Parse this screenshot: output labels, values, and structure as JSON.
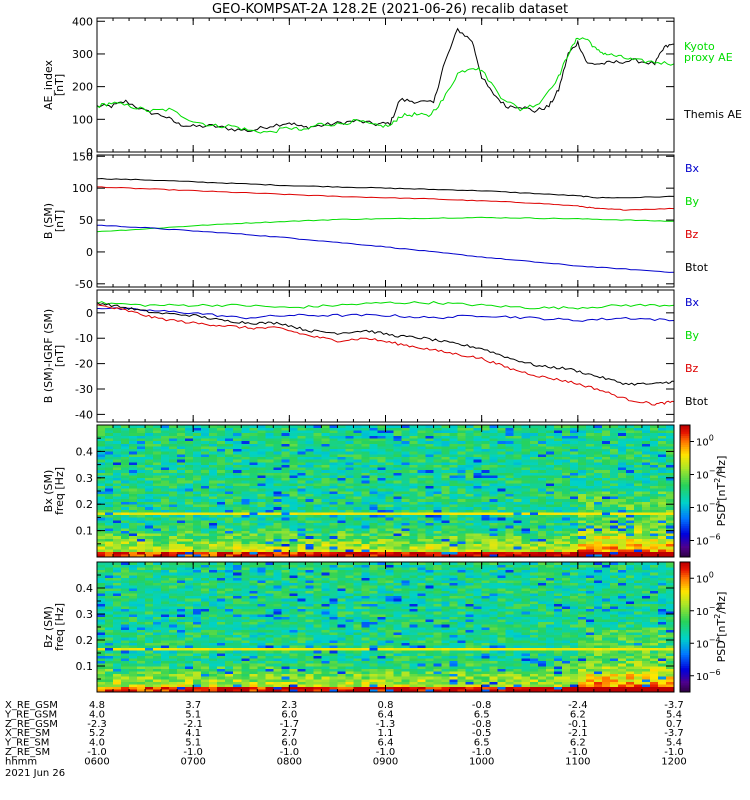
{
  "title": "GEO-KOMPSAT-2A 128.2E (2021-06-26) recalib dataset",
  "colors": {
    "black": "#000000",
    "green": "#00dd00",
    "red": "#dd0000",
    "blue": "#0000cc"
  },
  "chart_data": [
    {
      "type": "line",
      "ylabel": [
        "AE_index",
        "[nT]"
      ],
      "xlim": [
        6.0,
        12.0
      ],
      "ylim": [
        0,
        410
      ],
      "yticks": [
        "0",
        "100",
        "200",
        "300",
        "400"
      ],
      "legend": [
        {
          "name": "Kyoto proxy AE",
          "lines": [
            "Kyoto",
            "proxy AE"
          ],
          "color": "#00dd00"
        },
        {
          "name": "Themis AE",
          "lines": [
            "Themis AE"
          ],
          "color": "#000000"
        }
      ],
      "series": [
        {
          "name": "Themis AE",
          "color": "#000000",
          "x": [
            6.0,
            6.15,
            6.3,
            6.5,
            6.7,
            6.85,
            7.0,
            7.2,
            7.4,
            7.6,
            7.8,
            8.0,
            8.15,
            8.3,
            8.5,
            8.7,
            8.9,
            9.05,
            9.15,
            9.3,
            9.5,
            9.6,
            9.75,
            9.9,
            10.0,
            10.1,
            10.25,
            10.4,
            10.55,
            10.7,
            10.8,
            10.9,
            11.0,
            11.1,
            11.25,
            11.4,
            11.6,
            11.8,
            11.9,
            12.0
          ],
          "y": [
            140,
            140,
            155,
            125,
            110,
            85,
            78,
            80,
            70,
            65,
            80,
            90,
            75,
            80,
            88,
            95,
            85,
            88,
            160,
            155,
            150,
            260,
            375,
            340,
            230,
            185,
            140,
            140,
            125,
            140,
            190,
            300,
            335,
            270,
            270,
            275,
            280,
            270,
            320,
            330
          ]
        },
        {
          "name": "Kyoto proxy AE",
          "color": "#00dd00",
          "x": [
            6.0,
            6.15,
            6.35,
            6.55,
            6.75,
            7.0,
            7.2,
            7.4,
            7.6,
            7.8,
            8.0,
            8.15,
            8.3,
            8.5,
            8.7,
            8.9,
            9.05,
            9.15,
            9.3,
            9.45,
            9.6,
            9.75,
            9.9,
            10.0,
            10.2,
            10.4,
            10.6,
            10.8,
            10.9,
            11.0,
            11.1,
            11.2,
            11.3,
            11.45,
            11.6,
            11.8,
            12.0
          ],
          "y": [
            140,
            150,
            140,
            125,
            130,
            95,
            80,
            80,
            65,
            60,
            75,
            65,
            85,
            85,
            95,
            80,
            80,
            110,
            115,
            110,
            160,
            240,
            260,
            250,
            170,
            130,
            150,
            230,
            300,
            350,
            345,
            310,
            300,
            290,
            280,
            275,
            270
          ]
        }
      ]
    },
    {
      "type": "line",
      "ylabel": [
        "B (SM)",
        "[nT]"
      ],
      "xlim": [
        6.0,
        12.0
      ],
      "ylim": [
        -55,
        152
      ],
      "yticks": [
        "-50",
        "0",
        "50",
        "100",
        "150"
      ],
      "legend": [
        {
          "name": "Bx",
          "lines": [
            "Bx"
          ],
          "color": "#0000cc"
        },
        {
          "name": "By",
          "lines": [
            "By"
          ],
          "color": "#00dd00"
        },
        {
          "name": "Bz",
          "lines": [
            "Bz"
          ],
          "color": "#dd0000"
        },
        {
          "name": "Btot",
          "lines": [
            "Btot"
          ],
          "color": "#000000"
        }
      ],
      "series": [
        {
          "name": "Btot",
          "color": "#000000",
          "x": [
            6.0,
            6.5,
            7.0,
            7.5,
            8.0,
            8.5,
            9.0,
            9.5,
            10.0,
            10.5,
            11.0,
            11.2,
            11.5,
            12.0
          ],
          "y": [
            115,
            113,
            110,
            107,
            104,
            102,
            100,
            98,
            96,
            92,
            88,
            85,
            85,
            87
          ]
        },
        {
          "name": "Bz",
          "color": "#dd0000",
          "x": [
            6.0,
            6.5,
            7.0,
            7.5,
            8.0,
            8.5,
            9.0,
            9.5,
            10.0,
            10.5,
            11.0,
            11.2,
            11.5,
            12.0
          ],
          "y": [
            102,
            99,
            96,
            93,
            90,
            87,
            85,
            83,
            80,
            77,
            72,
            68,
            66,
            68
          ]
        },
        {
          "name": "By",
          "color": "#00dd00",
          "x": [
            6.0,
            6.5,
            7.0,
            7.5,
            8.0,
            8.5,
            9.0,
            9.5,
            10.0,
            10.5,
            11.0,
            11.5,
            12.0
          ],
          "y": [
            32,
            36,
            41,
            45,
            48,
            51,
            52,
            53,
            54,
            53,
            52,
            50,
            48
          ]
        },
        {
          "name": "Bx",
          "color": "#0000cc",
          "x": [
            6.0,
            6.5,
            7.0,
            7.5,
            8.0,
            8.5,
            9.0,
            9.5,
            10.0,
            10.5,
            11.0,
            11.5,
            12.0
          ],
          "y": [
            42,
            38,
            33,
            28,
            22,
            15,
            8,
            0,
            -8,
            -15,
            -22,
            -27,
            -32
          ]
        }
      ]
    },
    {
      "type": "line",
      "ylabel": [
        "B (SM)-IGRF (SM)",
        "[nT]"
      ],
      "xlim": [
        6.0,
        12.0
      ],
      "ylim": [
        -43,
        9
      ],
      "yticks": [
        "-40",
        "-30",
        "-20",
        "-10",
        "0"
      ],
      "ytick_values": [
        -40,
        -30,
        -20,
        -10,
        0
      ],
      "legend": [
        {
          "name": "Bx",
          "lines": [
            "Bx"
          ],
          "color": "#0000cc"
        },
        {
          "name": "By",
          "lines": [
            "By"
          ],
          "color": "#00dd00"
        },
        {
          "name": "Bz",
          "lines": [
            "Bz"
          ],
          "color": "#dd0000"
        },
        {
          "name": "Btot",
          "lines": [
            "Btot"
          ],
          "color": "#000000"
        }
      ],
      "series": [
        {
          "name": "By",
          "color": "#00dd00",
          "x": [
            6.0,
            6.5,
            7.0,
            7.5,
            8.0,
            8.5,
            9.0,
            9.5,
            10.0,
            10.5,
            11.0,
            11.5,
            12.0
          ],
          "y": [
            4,
            3,
            3,
            3,
            2,
            3,
            4,
            4,
            3,
            2,
            2,
            3,
            3
          ]
        },
        {
          "name": "Bx",
          "color": "#0000cc",
          "x": [
            6.0,
            6.5,
            7.0,
            7.5,
            8.0,
            8.5,
            9.0,
            9.5,
            10.0,
            10.5,
            11.0,
            11.5,
            12.0
          ],
          "y": [
            2,
            1,
            0,
            -2,
            -1,
            -1,
            -1,
            -2,
            -1,
            -2,
            -3,
            -2,
            -3
          ]
        },
        {
          "name": "Btot",
          "color": "#000000",
          "x": [
            6.0,
            6.3,
            6.6,
            7.0,
            7.3,
            7.6,
            7.9,
            8.2,
            8.5,
            8.8,
            9.1,
            9.4,
            9.7,
            10.0,
            10.3,
            10.6,
            10.9,
            11.2,
            11.5,
            11.8,
            12.0
          ],
          "y": [
            4,
            2,
            0,
            -1,
            -3,
            -4,
            -4,
            -7,
            -8,
            -7,
            -9,
            -10,
            -12,
            -14,
            -18,
            -21,
            -22,
            -25,
            -28,
            -28,
            -27
          ]
        },
        {
          "name": "Bz",
          "color": "#dd0000",
          "x": [
            6.0,
            6.3,
            6.6,
            7.0,
            7.3,
            7.6,
            7.9,
            8.2,
            8.5,
            8.8,
            9.1,
            9.4,
            9.7,
            10.0,
            10.3,
            10.6,
            10.9,
            11.2,
            11.5,
            11.8,
            12.0
          ],
          "y": [
            3,
            1,
            -2,
            -4,
            -5,
            -6,
            -6,
            -9,
            -11,
            -10,
            -12,
            -14,
            -16,
            -18,
            -22,
            -25,
            -27,
            -30,
            -34,
            -36,
            -35
          ]
        }
      ]
    },
    {
      "type": "heatmap",
      "ylabel": [
        "Bx (SM)",
        "freq [Hz]"
      ],
      "ylim": [
        0.0,
        0.5
      ],
      "yticks": [
        "0.1",
        "0.2",
        "0.3",
        "0.4"
      ],
      "ytick_values": [
        0.1,
        0.2,
        0.3,
        0.4
      ],
      "colorbar": {
        "label": "PSD [nT²/Hz]",
        "label_base": "PSD [nT",
        "label_sup": "2",
        "label_tail": "/Hz]",
        "ticks": [
          {
            "base": "10",
            "exp": "0"
          },
          {
            "base": "10",
            "exp": "−2"
          },
          {
            "base": "10",
            "exp": "−4"
          },
          {
            "base": "10",
            "exp": "−6"
          }
        ],
        "tick_exponents": [
          0,
          -2,
          -4,
          -6
        ],
        "range_exponents": [
          -7,
          1
        ]
      },
      "features": {
        "fixed_line_hz": 0.165,
        "enhanced_low_freq_below_hz": 0.1
      }
    },
    {
      "type": "heatmap",
      "ylabel": [
        "Bz (SM)",
        "freq [Hz]"
      ],
      "ylim": [
        0.0,
        0.5
      ],
      "yticks": [
        "0.1",
        "0.2",
        "0.3",
        "0.4"
      ],
      "ytick_values": [
        0.1,
        0.2,
        0.3,
        0.4
      ],
      "colorbar": {
        "label": "PSD [nT²/Hz]",
        "label_base": "PSD [nT",
        "label_sup": "2",
        "label_tail": "/Hz]",
        "ticks": [
          {
            "base": "10",
            "exp": "0"
          },
          {
            "base": "10",
            "exp": "−2"
          },
          {
            "base": "10",
            "exp": "−4"
          },
          {
            "base": "10",
            "exp": "−6"
          }
        ],
        "tick_exponents": [
          0,
          -2,
          -4,
          -6
        ],
        "range_exponents": [
          -7,
          1
        ]
      },
      "features": {
        "fixed_line_hz": 0.165,
        "enhanced_low_freq_below_hz": 0.1
      }
    }
  ],
  "ephemeris": {
    "rows": [
      {
        "label": "X_RE_GSM",
        "values": [
          "4.8",
          "3.7",
          "2.3",
          "0.8",
          "-0.8",
          "-2.4",
          "-3.7"
        ]
      },
      {
        "label": "Y_RE_GSM",
        "values": [
          "4.0",
          "5.1",
          "6.0",
          "6.4",
          "6.5",
          "6.2",
          "5.4"
        ]
      },
      {
        "label": "Z_RE_GSM",
        "values": [
          "-2.3",
          "-2.1",
          "-1.7",
          "-1.3",
          "-0.8",
          "-0.1",
          "0.7"
        ]
      },
      {
        "label": "X_RE_SM",
        "values": [
          "5.2",
          "4.1",
          "2.7",
          "1.1",
          "-0.5",
          "-2.1",
          "-3.7"
        ]
      },
      {
        "label": "Y_RE_SM",
        "values": [
          "4.0",
          "5.1",
          "6.0",
          "6.4",
          "6.5",
          "6.2",
          "5.4"
        ]
      },
      {
        "label": "Z_RE_SM",
        "values": [
          "-1.0",
          "-1.0",
          "-1.0",
          "-1.0",
          "-1.0",
          "-1.0",
          "-1.0"
        ]
      },
      {
        "label": "hhmm",
        "values": [
          "0600",
          "0700",
          "0800",
          "0900",
          "1000",
          "1100",
          "1200"
        ]
      }
    ],
    "date": "2021 Jun 26"
  }
}
